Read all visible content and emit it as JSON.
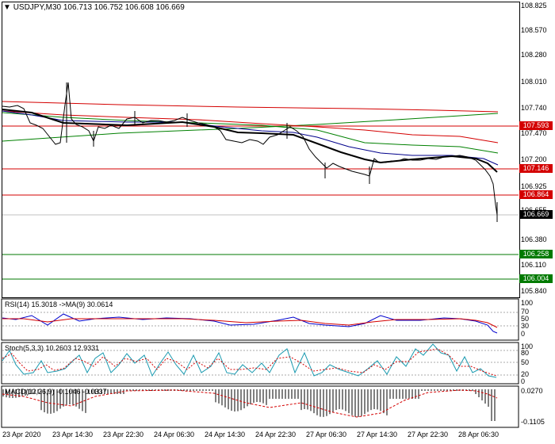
{
  "main": {
    "header": "USDJPY,M30  106.713 106.752 106.608 106.669",
    "y_ticks": [
      "108.825",
      "108.570",
      "108.280",
      "108.010",
      "107.740",
      "107.470",
      "107.200",
      "106.925",
      "106.655",
      "106.380",
      "106.110",
      "105.840"
    ],
    "price_boxes": [
      {
        "value": "107.593",
        "color": "#d40000"
      },
      {
        "value": "107.146",
        "color": "#d40000"
      },
      {
        "value": "106.864",
        "color": "#d40000"
      },
      {
        "value": "106.669",
        "color": "#000000"
      },
      {
        "value": "106.258",
        "color": "#007a00"
      },
      {
        "value": "106.004",
        "color": "#007a00"
      }
    ]
  },
  "rsi": {
    "header": "RSI(14) 15.3018   ->MA(9) 30.0614",
    "ticks": [
      "100",
      "70",
      "50",
      "30",
      "0"
    ]
  },
  "stoch": {
    "header": "Stoch(5,3,3) 10.2603 12.9331",
    "ticks": [
      "100",
      "80",
      "50",
      "20",
      "0"
    ]
  },
  "macd": {
    "header": "MACD(12,26,9) -0.1046 -0.0337",
    "ticks": [
      "0.0270",
      "-0.1105"
    ]
  },
  "time_axis": [
    "23 Apr 2020",
    "23 Apr 14:30",
    "23 Apr 22:30",
    "24 Apr 06:30",
    "24 Apr 14:30",
    "24 Apr 22:30",
    "27 Apr 06:30",
    "27 Apr 14:30",
    "27 Apr 22:30",
    "28 Apr 06:30"
  ],
  "colors": {
    "resistance": "#d40000",
    "support": "#007a00",
    "sma_blue": "#00008b",
    "sma_green": "#008000",
    "sma_red": "#d40000",
    "price_line": "#000000",
    "rsi_line": "#0000cc",
    "stoch_main": "#1a9ab0"
  }
}
